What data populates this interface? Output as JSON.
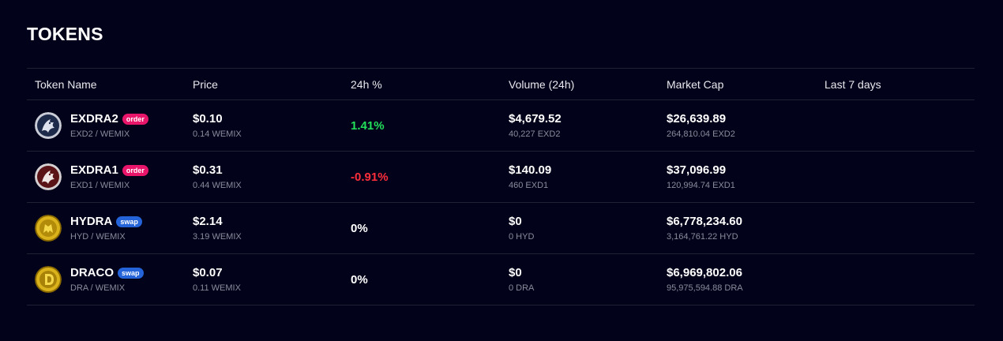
{
  "page": {
    "title": "TOKENS"
  },
  "colors": {
    "background": "#02021a",
    "positive": "#22e05a",
    "negative": "#ff2e3b",
    "order_badge": "#e8156a",
    "swap_badge": "#2463d8"
  },
  "table": {
    "headers": [
      "Token Name",
      "Price",
      "24h %",
      "Volume (24h)",
      "Market Cap",
      "Last 7 days"
    ],
    "rows": [
      {
        "icon": "exdra2-logo-icon",
        "name": "EXDRA2",
        "badge": "order",
        "pair": "EXD2 / WEMIX",
        "price": "$0.10",
        "price_sub": "0.14 WEMIX",
        "change": "1.41%",
        "change_trend": "up",
        "volume": "$4,679.52",
        "volume_sub": "40,227 EXD2",
        "market_cap": "$26,639.89",
        "market_cap_sub": "264,810.04 EXD2"
      },
      {
        "icon": "exdra1-logo-icon",
        "name": "EXDRA1",
        "badge": "order",
        "pair": "EXD1 / WEMIX",
        "price": "$0.31",
        "price_sub": "0.44 WEMIX",
        "change": "-0.91%",
        "change_trend": "down",
        "volume": "$140.09",
        "volume_sub": "460 EXD1",
        "market_cap": "$37,096.99",
        "market_cap_sub": "120,994.74 EXD1"
      },
      {
        "icon": "hydra-logo-icon",
        "name": "HYDRA",
        "badge": "swap",
        "pair": "HYD / WEMIX",
        "price": "$2.14",
        "price_sub": "3.19 WEMIX",
        "change": "0%",
        "change_trend": "flat",
        "volume": "$0",
        "volume_sub": "0 HYD",
        "market_cap": "$6,778,234.60",
        "market_cap_sub": "3,164,761.22 HYD"
      },
      {
        "icon": "draco-logo-icon",
        "name": "DRACO",
        "badge": "swap",
        "pair": "DRA / WEMIX",
        "price": "$0.07",
        "price_sub": "0.11 WEMIX",
        "change": "0%",
        "change_trend": "flat",
        "volume": "$0",
        "volume_sub": "0 DRA",
        "market_cap": "$6,969,802.06",
        "market_cap_sub": "95,975,594.88 DRA"
      }
    ]
  }
}
